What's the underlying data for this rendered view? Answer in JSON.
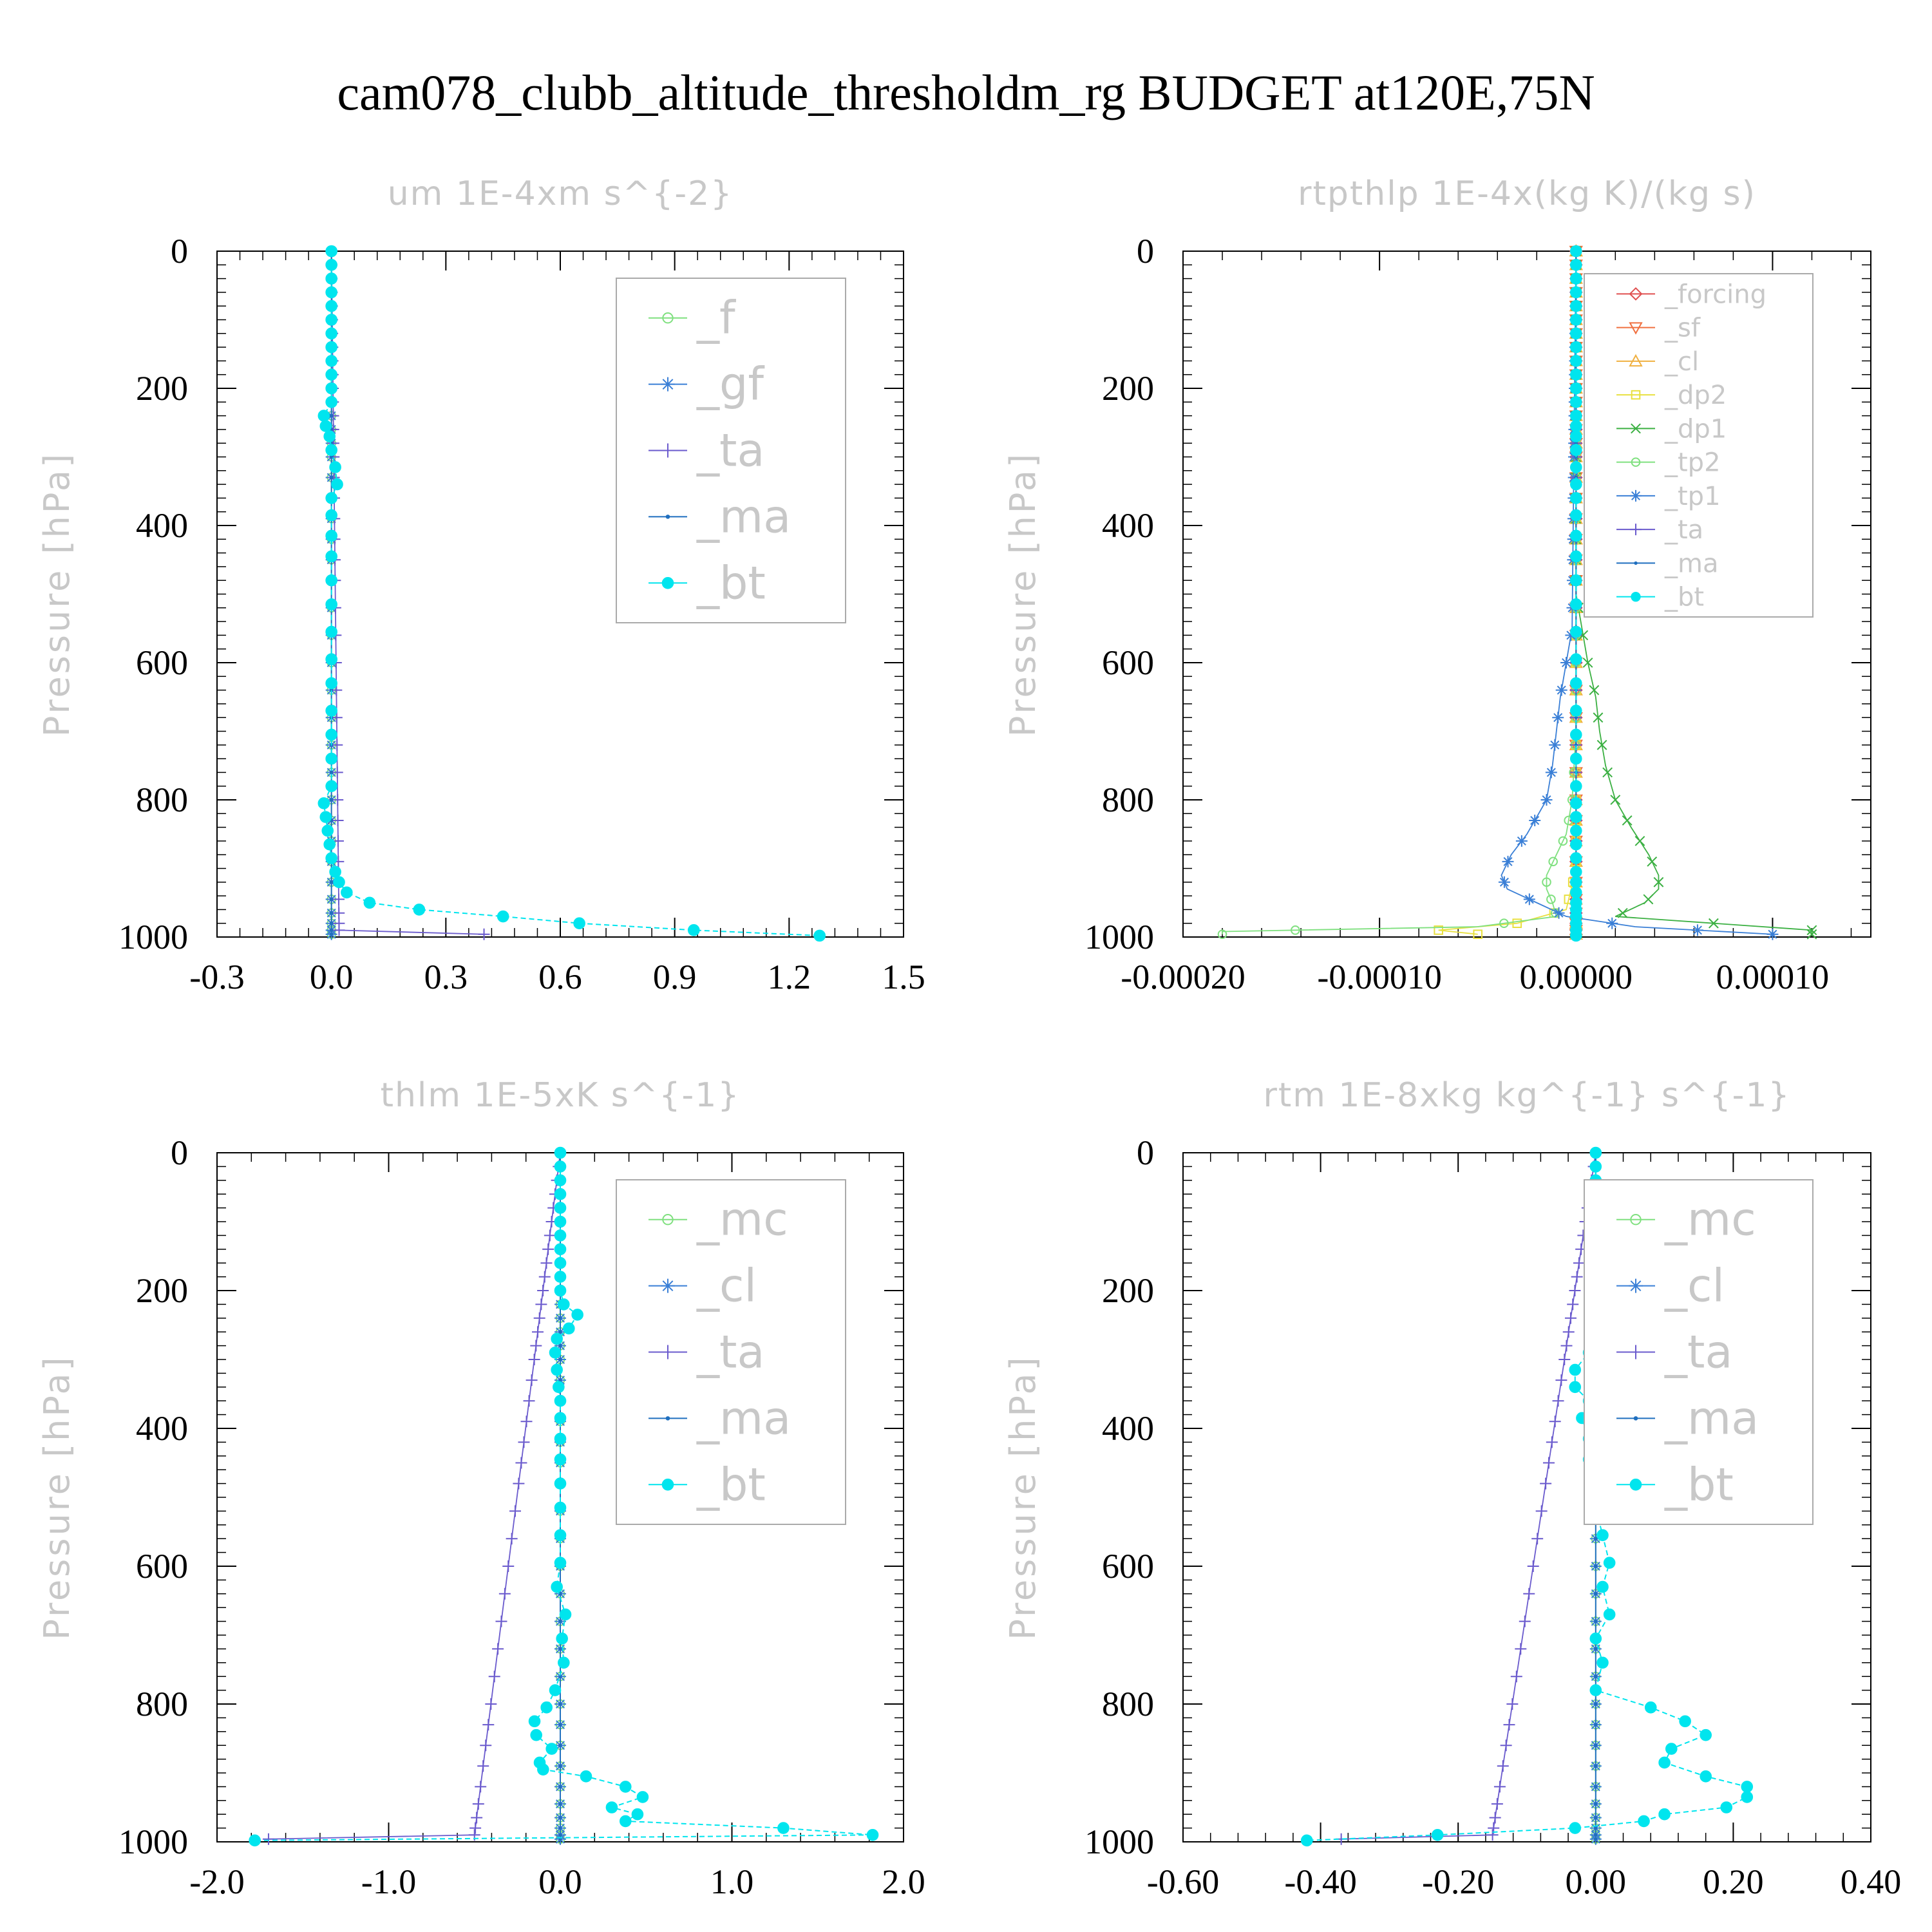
{
  "figure_title": "cam078_clubb_altitude_thresholdm_rg  BUDGET at120E,75N",
  "chart_data": [
    {
      "type": "line",
      "title": "um   1E-4xm s^{-2}",
      "ylabel": "Pressure [hPa]",
      "ylim": [
        1000,
        0
      ],
      "xlim": [
        -0.3,
        1.5
      ],
      "xticks": [
        "-0.3",
        "0.0",
        "0.3",
        "0.6",
        "0.9",
        "1.2",
        "1.5"
      ],
      "xtick_values": [
        -0.3,
        0.0,
        0.3,
        0.6,
        0.9,
        1.2,
        1.5
      ],
      "yticks": [
        "0",
        "200",
        "400",
        "600",
        "800",
        "1000"
      ],
      "ytick_values": [
        0,
        200,
        400,
        600,
        800,
        1000
      ],
      "legend_position": "top-right",
      "series": [
        {
          "name": "_f",
          "color": "#7fe07f",
          "marker": "circle-open",
          "p": [
            0,
            1000
          ],
          "v": [
            0,
            0
          ]
        },
        {
          "name": "_gf",
          "color": "#3a7fd6",
          "marker": "star",
          "p": [
            0,
            1000
          ],
          "v": [
            0,
            0
          ]
        },
        {
          "name": "_ta",
          "color": "#6a5acd",
          "marker": "plus",
          "p": [
            0,
            990,
            996
          ],
          "v": [
            0,
            0.02,
            0.4
          ]
        },
        {
          "name": "_ma",
          "color": "#1f6fbf",
          "marker": "dot",
          "p": [
            0,
            1000
          ],
          "v": [
            0,
            0
          ]
        },
        {
          "name": "_bt",
          "color": "#00e5ee",
          "marker": "filled-circle",
          "p": [
            0,
            20,
            40,
            60,
            80,
            100,
            120,
            140,
            160,
            180,
            200,
            220,
            240,
            255,
            270,
            290,
            315,
            340,
            360,
            385,
            415,
            445,
            480,
            515,
            555,
            595,
            630,
            670,
            705,
            740,
            780,
            805,
            825,
            845,
            865,
            885,
            905,
            920,
            935,
            950,
            960,
            970,
            980,
            990,
            998
          ],
          "v": [
            0,
            0,
            0,
            0,
            0,
            0,
            0,
            0,
            0,
            0,
            0,
            0,
            -0.02,
            -0.015,
            -0.005,
            0,
            0.01,
            0.015,
            0,
            0,
            0,
            0,
            0,
            0,
            0,
            0,
            0,
            0,
            0,
            0,
            0,
            -0.02,
            -0.015,
            -0.01,
            -0.005,
            0,
            0.01,
            0.02,
            0.04,
            0.1,
            0.23,
            0.45,
            0.65,
            0.95,
            1.28
          ]
        }
      ]
    },
    {
      "type": "line",
      "title": "rtpthlp   1E-4x(kg K)/(kg s)",
      "ylabel": "Pressure [hPa]",
      "ylim": [
        1000,
        0
      ],
      "xlim": [
        -0.0002,
        0.00015
      ],
      "xticks": [
        "-0.00020",
        "-0.00010",
        "0.00000",
        "0.00010"
      ],
      "xtick_values": [
        -0.0002,
        -0.0001,
        0.0,
        0.0001
      ],
      "yticks": [
        "0",
        "200",
        "400",
        "600",
        "800",
        "1000"
      ],
      "ytick_values": [
        0,
        200,
        400,
        600,
        800,
        1000
      ],
      "legend_position": "top-right",
      "series": [
        {
          "name": "_forcing",
          "color": "#e05050",
          "marker": "diamond-open",
          "p": [
            0,
            1000
          ],
          "v": [
            0,
            0
          ]
        },
        {
          "name": "_sf",
          "color": "#f07040",
          "marker": "triangle-down",
          "p": [
            0,
            1000
          ],
          "v": [
            0,
            0
          ]
        },
        {
          "name": "_cl",
          "color": "#f0b040",
          "marker": "triangle-up",
          "p": [
            0,
            1000
          ],
          "v": [
            0,
            0
          ]
        },
        {
          "name": "_dp2",
          "color": "#e8e040",
          "marker": "square-open",
          "p": [
            0,
            900,
            960,
            980,
            990,
            996
          ],
          "v": [
            0,
            0,
            -5e-06,
            -3e-05,
            -7e-05,
            -5e-05
          ]
        },
        {
          "name": "_dp1",
          "color": "#3cb043",
          "marker": "x",
          "p": [
            0,
            500,
            550,
            600,
            650,
            700,
            750,
            800,
            840,
            880,
            910,
            930,
            950,
            970,
            990,
            996
          ],
          "v": [
            0,
            0,
            3e-06,
            6e-06,
            1e-05,
            1.2e-05,
            1.5e-05,
            2e-05,
            2.8e-05,
            3.7e-05,
            4.2e-05,
            4.2e-05,
            3.5e-05,
            2e-05,
            0.00012,
            0.00012
          ]
        },
        {
          "name": "_tp2",
          "color": "#7fe07f",
          "marker": "circle-open",
          "p": [
            0,
            700,
            800,
            850,
            880,
            910,
            930,
            950,
            970,
            985,
            992,
            996
          ],
          "v": [
            0,
            0,
            -2e-06,
            -5e-06,
            -1e-05,
            -1.5e-05,
            -1.5e-05,
            -1.2e-05,
            -1e-05,
            -5e-05,
            -0.00018,
            -0.00018
          ]
        },
        {
          "name": "_tp1",
          "color": "#3a7fd6",
          "marker": "star",
          "p": [
            0,
            550,
            600,
            650,
            700,
            750,
            800,
            850,
            880,
            910,
            930,
            950,
            970,
            985,
            996
          ],
          "v": [
            0,
            -2e-06,
            -5e-06,
            -8e-06,
            -1e-05,
            -1.2e-05,
            -1.5e-05,
            -2.5e-05,
            -3.3e-05,
            -3.8e-05,
            -3.5e-05,
            -2e-05,
            -5e-06,
            3e-05,
            0.0001
          ]
        },
        {
          "name": "_ta",
          "color": "#6a5acd",
          "marker": "plus",
          "p": [
            0,
            1000
          ],
          "v": [
            0,
            0
          ]
        },
        {
          "name": "_ma",
          "color": "#1f6fbf",
          "marker": "dot",
          "p": [
            0,
            1000
          ],
          "v": [
            0,
            0
          ]
        },
        {
          "name": "_bt",
          "color": "#00e5ee",
          "marker": "filled-circle",
          "p": [
            0,
            20,
            40,
            60,
            80,
            100,
            120,
            140,
            160,
            180,
            200,
            220,
            240,
            255,
            270,
            290,
            315,
            340,
            360,
            385,
            415,
            445,
            480,
            515,
            555,
            595,
            630,
            670,
            705,
            740,
            780,
            805,
            825,
            845,
            865,
            885,
            905,
            920,
            935,
            950,
            960,
            970,
            980,
            990,
            998
          ],
          "v": [
            0,
            0,
            0,
            0,
            0,
            0,
            0,
            0,
            0,
            0,
            0,
            0,
            0,
            0,
            0,
            0,
            0,
            0,
            0,
            0,
            0,
            0,
            0,
            0,
            0,
            0,
            0,
            0,
            0,
            0,
            0,
            0,
            0,
            0,
            0,
            0,
            0,
            0,
            0,
            0,
            0,
            0,
            0,
            0,
            0
          ]
        }
      ]
    },
    {
      "type": "line",
      "title": "thlm   1E-5xK s^{-1}",
      "ylabel": "Pressure [hPa]",
      "ylim": [
        1000,
        0
      ],
      "xlim": [
        -2.0,
        2.0
      ],
      "xticks": [
        "-2.0",
        "-1.0",
        "0.0",
        "1.0",
        "2.0"
      ],
      "xtick_values": [
        -2.0,
        -1.0,
        0.0,
        1.0,
        2.0
      ],
      "yticks": [
        "0",
        "200",
        "400",
        "600",
        "800",
        "1000"
      ],
      "ytick_values": [
        0,
        200,
        400,
        600,
        800,
        1000
      ],
      "legend_position": "top-right",
      "series": [
        {
          "name": "_mc",
          "color": "#7fe07f",
          "marker": "circle-open",
          "p": [
            0,
            1000
          ],
          "v": [
            0,
            0
          ]
        },
        {
          "name": "_cl",
          "color": "#3a7fd6",
          "marker": "star",
          "p": [
            0,
            1000
          ],
          "v": [
            0,
            0
          ]
        },
        {
          "name": "_ta",
          "color": "#6a5acd",
          "marker": "plus",
          "p": [
            0,
            990,
            996
          ],
          "v": [
            0,
            -0.5,
            -1.7
          ]
        },
        {
          "name": "_ma",
          "color": "#1f6fbf",
          "marker": "dot",
          "p": [
            0,
            1000
          ],
          "v": [
            0,
            0
          ]
        },
        {
          "name": "_bt",
          "color": "#00e5ee",
          "marker": "filled-circle",
          "p": [
            0,
            20,
            40,
            60,
            80,
            100,
            120,
            140,
            160,
            180,
            200,
            220,
            235,
            255,
            270,
            290,
            315,
            340,
            360,
            385,
            415,
            445,
            480,
            515,
            555,
            595,
            630,
            670,
            705,
            740,
            780,
            805,
            825,
            845,
            865,
            885,
            895,
            905,
            920,
            935,
            950,
            960,
            970,
            980,
            990,
            998
          ],
          "v": [
            0,
            0,
            0,
            0,
            0,
            0,
            0,
            0,
            0,
            0,
            0,
            0.02,
            0.1,
            0.05,
            -0.02,
            -0.03,
            -0.02,
            -0.01,
            0,
            0,
            0,
            0,
            0,
            0,
            0,
            0,
            -0.02,
            0.03,
            0.01,
            0.02,
            -0.03,
            -0.08,
            -0.15,
            -0.14,
            -0.05,
            -0.12,
            -0.1,
            0.15,
            0.38,
            0.48,
            0.3,
            0.45,
            0.38,
            1.3,
            1.82,
            -1.78
          ]
        }
      ]
    },
    {
      "type": "line",
      "title": "rtm   1E-8xkg kg^{-1} s^{-1}",
      "ylabel": "Pressure [hPa]",
      "ylim": [
        1000,
        0
      ],
      "xlim": [
        -0.6,
        0.4
      ],
      "xticks": [
        "-0.60",
        "-0.40",
        "-0.20",
        "0.00",
        "0.20",
        "0.40"
      ],
      "xtick_values": [
        -0.6,
        -0.4,
        -0.2,
        0.0,
        0.2,
        0.4
      ],
      "yticks": [
        "0",
        "200",
        "400",
        "600",
        "800",
        "1000"
      ],
      "ytick_values": [
        0,
        200,
        400,
        600,
        800,
        1000
      ],
      "legend_position": "top-right",
      "series": [
        {
          "name": "_mc",
          "color": "#7fe07f",
          "marker": "circle-open",
          "p": [
            0,
            1000
          ],
          "v": [
            0,
            0
          ]
        },
        {
          "name": "_cl",
          "color": "#3a7fd6",
          "marker": "star",
          "p": [
            0,
            1000
          ],
          "v": [
            0,
            0
          ]
        },
        {
          "name": "_ta",
          "color": "#6a5acd",
          "marker": "plus",
          "p": [
            0,
            990,
            996
          ],
          "v": [
            0,
            -0.15,
            -0.37
          ]
        },
        {
          "name": "_ma",
          "color": "#1f6fbf",
          "marker": "dot",
          "p": [
            0,
            1000
          ],
          "v": [
            0,
            0
          ]
        },
        {
          "name": "_bt",
          "color": "#00e5ee",
          "marker": "filled-circle",
          "p": [
            0,
            20,
            40,
            60,
            80,
            100,
            120,
            140,
            160,
            180,
            200,
            220,
            235,
            255,
            270,
            290,
            315,
            340,
            360,
            385,
            415,
            445,
            480,
            515,
            555,
            595,
            630,
            670,
            705,
            740,
            780,
            805,
            825,
            845,
            865,
            885,
            905,
            920,
            935,
            950,
            960,
            970,
            980,
            990,
            998
          ],
          "v": [
            0,
            0,
            0,
            0,
            0,
            0,
            0,
            0,
            0,
            0,
            0.01,
            0.02,
            0.05,
            0.06,
            0.04,
            -0.01,
            -0.03,
            -0.03,
            -0.01,
            -0.02,
            -0.01,
            -0.01,
            0,
            0,
            0.01,
            0.02,
            0.01,
            0.02,
            0,
            0.01,
            0.0,
            0.08,
            0.13,
            0.16,
            0.11,
            0.1,
            0.16,
            0.22,
            0.22,
            0.19,
            0.1,
            0.07,
            -0.03,
            -0.23,
            -0.42
          ]
        }
      ]
    }
  ]
}
